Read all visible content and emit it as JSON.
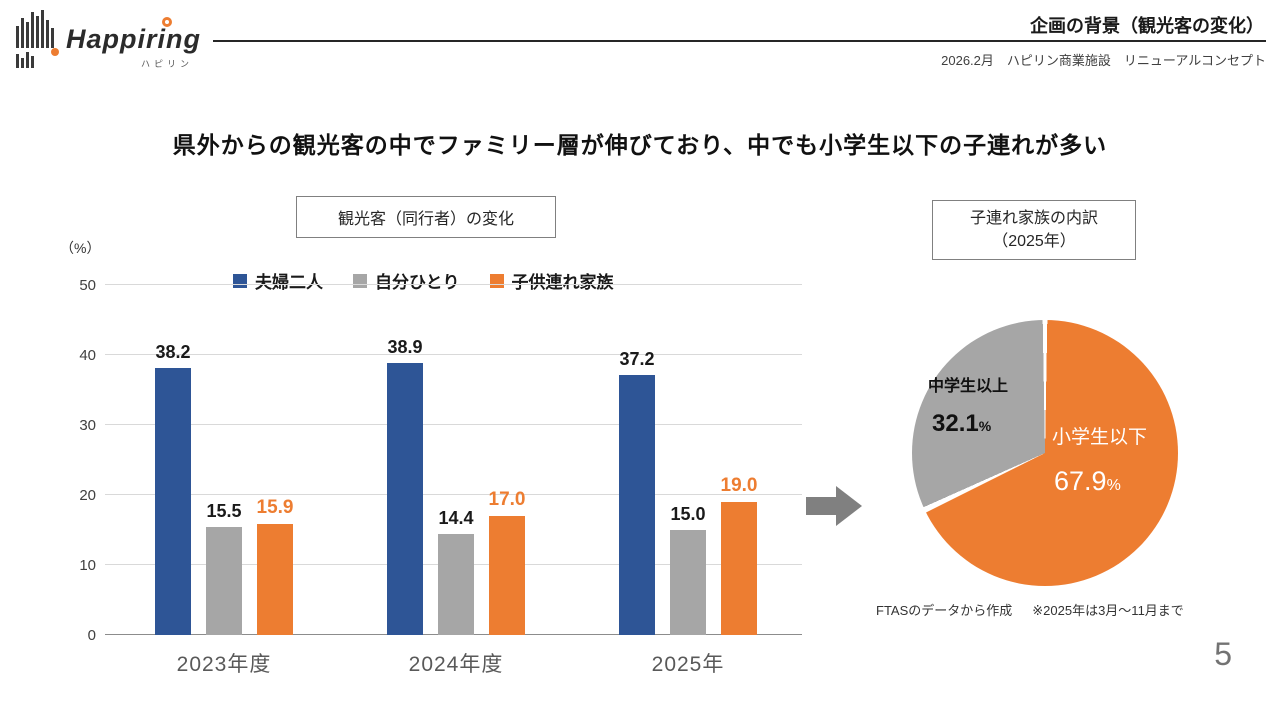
{
  "header": {
    "logo": {
      "name": "Happiring",
      "kana": "ハピリン"
    },
    "title": "企画の背景（観光客の変化）",
    "subtitle": "2026.2月　ハピリン商業施設　リニューアルコンセプト"
  },
  "heading": "県外からの観光客の中でファミリー層が伸びており、中でも小学生以下の子連れが多い",
  "page_number": "5",
  "chart_data": [
    {
      "type": "bar",
      "title": "観光客（同行者）の変化",
      "ylabel": "（%）",
      "ylim": [
        0,
        50
      ],
      "yticks": [
        0,
        10,
        20,
        30,
        40,
        50
      ],
      "grid": true,
      "legend_position": "top",
      "categories": [
        "2023年度",
        "2024年度",
        "2025年"
      ],
      "series": [
        {
          "name": "夫婦二人",
          "color": "#2E5596",
          "label_color": "#1a1a1a",
          "values": [
            38.2,
            38.9,
            37.2
          ]
        },
        {
          "name": "自分ひとり",
          "color": "#A6A6A6",
          "label_color": "#1a1a1a",
          "values": [
            15.5,
            14.4,
            15.0
          ]
        },
        {
          "name": "子供連れ家族",
          "color": "#ED7D31",
          "label_color": "#ED7D31",
          "values": [
            15.9,
            17.0,
            19.0
          ]
        }
      ]
    },
    {
      "type": "pie",
      "title": "子連れ家族の内訳",
      "subtitle": "（2025年）",
      "unit": "%",
      "start_angle_deg": 0,
      "slices": [
        {
          "label": "小学生以下",
          "value": 67.9,
          "color": "#ED7D31",
          "text_color": "#FFFFFF"
        },
        {
          "label": "中学生以上",
          "value": 32.1,
          "color": "#A6A6A6",
          "text_color": "#111111"
        }
      ],
      "source_note": "FTASのデータから作成",
      "period_note": "※2025年は3月～11月まで"
    }
  ]
}
